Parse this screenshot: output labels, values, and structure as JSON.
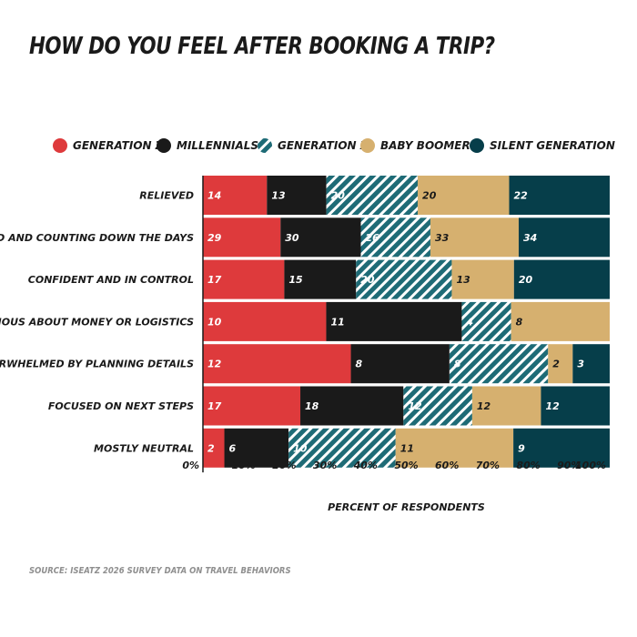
{
  "title": "HOW DO YOU FEEL AFTER BOOKING A TRIP?",
  "source": "SOURCE: ISEATZ 2026 SURVEY DATA ON TRAVEL BEHAVIORS",
  "colors": {
    "generation_z": "#de3a3c",
    "millennials": "#1a1a1a",
    "generation_x": "#1e6b76",
    "baby_boomers": "#d6b06f",
    "silent_generation": "#063e4a"
  },
  "chart_data": {
    "type": "bar",
    "orientation": "horizontal",
    "stacked": "percent",
    "categories": [
      "RELIEVED",
      "EXCITED AND COUNTING DOWN THE DAYS",
      "CONFIDENT AND IN CONTROL",
      "ANXIOUS ABOUT MONEY OR LOGISTICS",
      "OVERWHELMED BY PLANNING DETAILS",
      "FOCUSED ON NEXT STEPS",
      "MOSTLY NEUTRAL"
    ],
    "series": [
      {
        "name": "GENERATION Z",
        "values": [
          14,
          29,
          17,
          10,
          12,
          17,
          2
        ],
        "color": "#de3a3c",
        "pattern": "solid"
      },
      {
        "name": "MILLENNIALS",
        "values": [
          13,
          30,
          15,
          11,
          8,
          18,
          6
        ],
        "color": "#1a1a1a",
        "pattern": "solid"
      },
      {
        "name": "GENERATION X",
        "values": [
          20,
          26,
          20,
          4,
          8,
          12,
          10
        ],
        "color": "#1e6b76",
        "pattern": "diagonal-stripes"
      },
      {
        "name": "BABY BOOMERS",
        "values": [
          20,
          33,
          13,
          8,
          2,
          12,
          11
        ],
        "color": "#d6b06f",
        "pattern": "solid"
      },
      {
        "name": "SILENT GENERATION",
        "values": [
          22,
          34,
          20,
          null,
          3,
          12,
          9
        ],
        "color": "#063e4a",
        "pattern": "solid"
      }
    ],
    "xlabel": "PERCENT OF RESPONDENTS",
    "xlim": [
      0,
      100
    ],
    "xticks": [
      "0%",
      "10%",
      "20%",
      "30%",
      "40%",
      "50%",
      "60%",
      "70%",
      "80%",
      "90%",
      "100%"
    ],
    "legend_position": "top",
    "grid": false
  }
}
